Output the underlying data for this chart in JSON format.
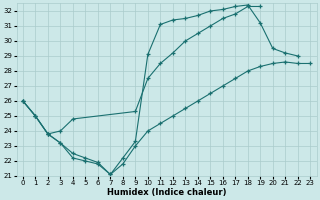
{
  "xlabel": "Humidex (Indice chaleur)",
  "bg_color": "#cce8e8",
  "grid_color": "#aacccc",
  "line_color": "#1a7070",
  "xlim": [
    -0.5,
    23.5
  ],
  "ylim": [
    21,
    32.5
  ],
  "xticks": [
    0,
    1,
    2,
    3,
    4,
    5,
    6,
    7,
    8,
    9,
    10,
    11,
    12,
    13,
    14,
    15,
    16,
    17,
    18,
    19,
    20,
    21,
    22,
    23
  ],
  "yticks": [
    21,
    22,
    23,
    24,
    25,
    26,
    27,
    28,
    29,
    30,
    31,
    32
  ],
  "line1_x": [
    0,
    1,
    2,
    3,
    4,
    5,
    6,
    7,
    8,
    9,
    10,
    11,
    12,
    13,
    14,
    15,
    16,
    17,
    18,
    19,
    20,
    21,
    22
  ],
  "line1_y": [
    26,
    25,
    23.8,
    23.2,
    22.2,
    22.0,
    21.8,
    21.1,
    22.2,
    23.3,
    29.1,
    31.1,
    31.4,
    31.5,
    31.7,
    32.0,
    32.1,
    32.3,
    32.4,
    31.2,
    29.5,
    29.2,
    29.0
  ],
  "line2_x": [
    0,
    1,
    2,
    3,
    4,
    9,
    10,
    11,
    12,
    13,
    14,
    15,
    16,
    17,
    18,
    19
  ],
  "line2_y": [
    26,
    25,
    23.8,
    24.0,
    24.8,
    25.3,
    27.5,
    28.5,
    29.2,
    30.0,
    30.5,
    31.0,
    31.5,
    31.8,
    32.3,
    32.3
  ],
  "line3_x": [
    0,
    1,
    2,
    3,
    4,
    5,
    6,
    7,
    8,
    9,
    10,
    11,
    12,
    13,
    14,
    15,
    16,
    17,
    18,
    19,
    20,
    21,
    22,
    23
  ],
  "line3_y": [
    26,
    25,
    23.8,
    23.2,
    22.5,
    22.2,
    21.9,
    21.1,
    21.8,
    23.0,
    24.0,
    24.5,
    25.0,
    25.5,
    26.0,
    26.5,
    27.0,
    27.5,
    28.0,
    28.3,
    28.5,
    28.6,
    28.5,
    28.5
  ]
}
